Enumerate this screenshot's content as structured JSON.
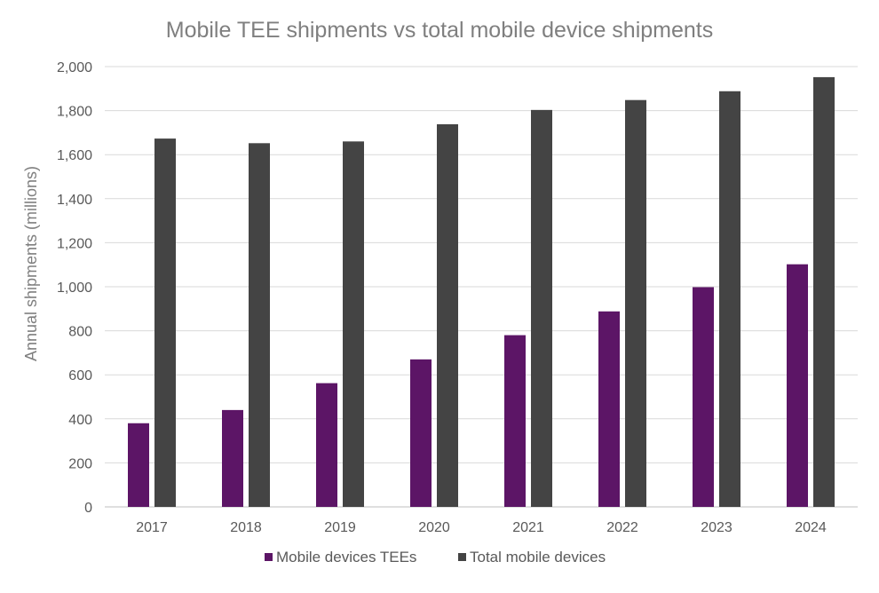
{
  "chart_data": {
    "type": "bar",
    "title": "Mobile TEE shipments vs total mobile device shipments",
    "xlabel": "",
    "ylabel": "Annual shipments (millions)",
    "ylim": [
      0,
      2000
    ],
    "yticks": [
      0,
      200,
      400,
      600,
      800,
      1000,
      1200,
      1400,
      1600,
      1800,
      2000
    ],
    "ytick_labels": [
      "0",
      "200",
      "400",
      "600",
      "800",
      "1,000",
      "1,200",
      "1,400",
      "1,600",
      "1,800",
      "2,000"
    ],
    "categories": [
      "2017",
      "2018",
      "2019",
      "2020",
      "2021",
      "2022",
      "2023",
      "2024"
    ],
    "series": [
      {
        "name": "Mobile devices TEEs",
        "color": "#5c1566",
        "values": [
          380,
          440,
          562,
          670,
          780,
          888,
          998,
          1102
        ]
      },
      {
        "name": "Total mobile devices",
        "color": "#444444",
        "values": [
          1673,
          1652,
          1660,
          1738,
          1803,
          1848,
          1888,
          1952
        ]
      }
    ],
    "grid": true,
    "legend": "bottom-center"
  }
}
